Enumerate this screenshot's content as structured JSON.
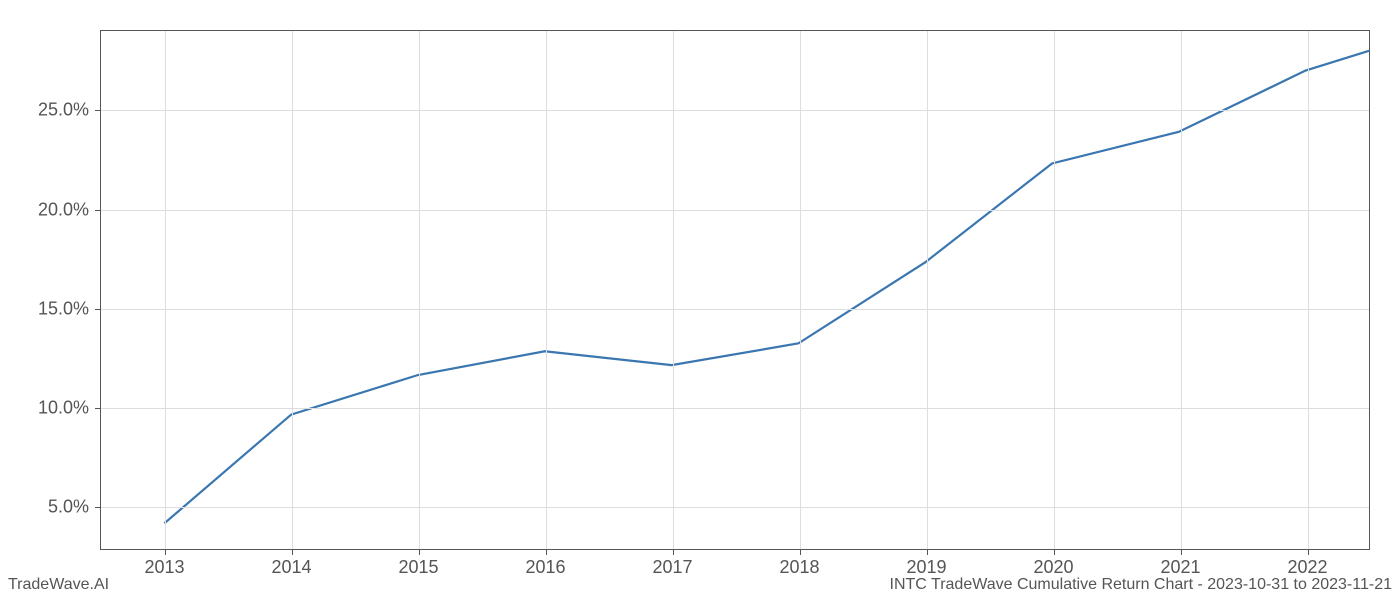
{
  "chart": {
    "type": "line",
    "background_color": "#ffffff",
    "grid_color": "#dddddd",
    "border_color": "#555555",
    "text_color": "#555555",
    "line_color": "#3a76af",
    "line_width": 2.2,
    "tick_fontsize": 18,
    "x_ticks": [
      "2013",
      "2014",
      "2015",
      "2016",
      "2017",
      "2018",
      "2019",
      "2020",
      "2021",
      "2022"
    ],
    "x_values": [
      2013,
      2014,
      2015,
      2016,
      2017,
      2018,
      2019,
      2020,
      2021,
      2022,
      2022.5
    ],
    "y_values": [
      4.1,
      9.6,
      11.6,
      12.8,
      12.1,
      13.2,
      17.3,
      22.3,
      23.9,
      27.0,
      28.0
    ],
    "y_ticks": [
      5.0,
      10.0,
      15.0,
      20.0,
      25.0
    ],
    "y_tick_labels": [
      "5.0%",
      "10.0%",
      "15.0%",
      "20.0%",
      "25.0%"
    ],
    "xlim": [
      2012.5,
      2022.5
    ],
    "ylim": [
      2.8,
      29.0
    ]
  },
  "footer": {
    "left": "TradeWave.AI",
    "right": "INTC TradeWave Cumulative Return Chart - 2023-10-31 to 2023-11-21"
  }
}
